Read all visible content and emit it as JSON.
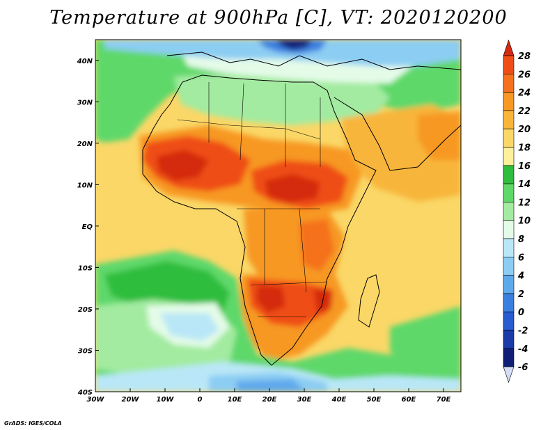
{
  "title": "Temperature at 900hPa [C], VT: 2020120200",
  "credit": "GrADS: IGES/COLA",
  "map": {
    "lon_range": [
      -30,
      75
    ],
    "lat_range": [
      -40,
      45
    ],
    "lon_ticks": [
      {
        "value": -30,
        "label": "30W"
      },
      {
        "value": -20,
        "label": "20W"
      },
      {
        "value": -10,
        "label": "10W"
      },
      {
        "value": 0,
        "label": "0"
      },
      {
        "value": 10,
        "label": "10E"
      },
      {
        "value": 20,
        "label": "20E"
      },
      {
        "value": 30,
        "label": "30E"
      },
      {
        "value": 40,
        "label": "40E"
      },
      {
        "value": 50,
        "label": "50E"
      },
      {
        "value": 60,
        "label": "60E"
      },
      {
        "value": 70,
        "label": "70E"
      }
    ],
    "lat_ticks": [
      {
        "value": 40,
        "label": "40N"
      },
      {
        "value": 30,
        "label": "30N"
      },
      {
        "value": 20,
        "label": "20N"
      },
      {
        "value": 10,
        "label": "10N"
      },
      {
        "value": 0,
        "label": "EQ"
      },
      {
        "value": -10,
        "label": "10S"
      },
      {
        "value": -20,
        "label": "20S"
      },
      {
        "value": -30,
        "label": "30S"
      },
      {
        "value": -40,
        "label": "40S"
      }
    ]
  },
  "colorbar": {
    "labels": [
      "28",
      "26",
      "24",
      "22",
      "20",
      "18",
      "16",
      "14",
      "12",
      "10",
      "8",
      "6",
      "4",
      "2",
      "0",
      "-2",
      "-4",
      "-6"
    ],
    "colors": [
      "#d42a0f",
      "#ef4d15",
      "#f5711d",
      "#f79824",
      "#f8b53a",
      "#fad767",
      "#fcf09a",
      "#2ebd3c",
      "#5fd86a",
      "#a3eba0",
      "#e4fbe8",
      "#b9e7f7",
      "#8ccdf3",
      "#5ea9ec",
      "#3a7fe0",
      "#275bd0",
      "#1a3ba8",
      "#101e78",
      "#d6ddf6"
    ]
  }
}
